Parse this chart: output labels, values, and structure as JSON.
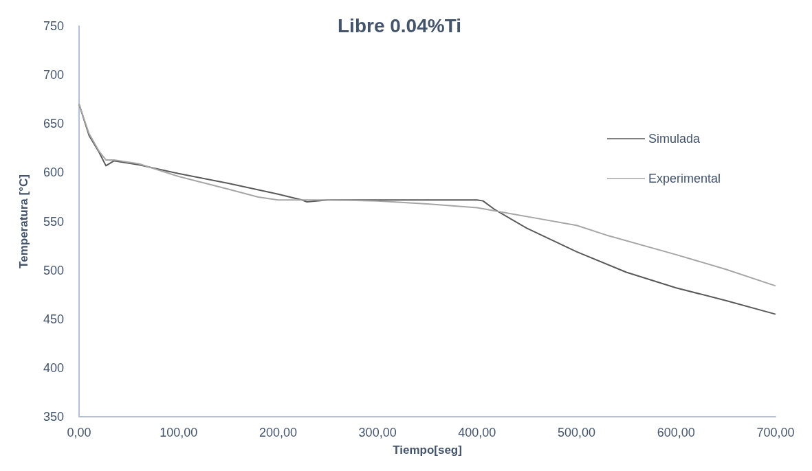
{
  "chart_data": {
    "type": "line",
    "title": "Libre 0.04%Ti",
    "xlabel": "Tiempo[seg]",
    "ylabel": "Temperatura [°C]",
    "xlim": [
      0,
      700
    ],
    "xticks": [
      {
        "value": 0,
        "label": "0,00"
      },
      {
        "value": 100,
        "label": "100,00"
      },
      {
        "value": 200,
        "label": "200,00"
      },
      {
        "value": 300,
        "label": "300,00"
      },
      {
        "value": 400,
        "label": "400,00"
      },
      {
        "value": 500,
        "label": "500,00"
      },
      {
        "value": 600,
        "label": "600,00"
      },
      {
        "value": 700,
        "label": "700,00"
      }
    ],
    "ylim": [
      350,
      750
    ],
    "yticks": [
      350,
      400,
      450,
      500,
      550,
      600,
      650,
      700,
      750
    ],
    "grid": false,
    "legend": "right",
    "marker": "none",
    "line_style": "solid",
    "series": [
      {
        "name": "Simulada",
        "color": "#595959",
        "x": [
          0,
          10,
          20,
          27,
          35,
          60,
          100,
          150,
          200,
          224,
          229,
          250,
          300,
          350,
          400,
          406,
          418,
          450,
          500,
          550,
          600,
          650,
          700
        ],
        "values": [
          670,
          638,
          621,
          607,
          612,
          608,
          599,
          589,
          578,
          572,
          570,
          572,
          572,
          572,
          572,
          571,
          562,
          543,
          519,
          498,
          482,
          469,
          455
        ]
      },
      {
        "name": "Experimental",
        "color": "#a6a6a6",
        "x": [
          0,
          10,
          20,
          27,
          35,
          60,
          100,
          150,
          180,
          200,
          250,
          300,
          350,
          400,
          450,
          500,
          530,
          600,
          650,
          700
        ],
        "values": [
          670,
          640,
          622,
          613,
          613,
          609,
          596,
          583,
          575,
          572,
          572,
          571,
          568,
          564,
          555,
          546,
          536,
          516,
          501,
          484
        ]
      }
    ]
  }
}
